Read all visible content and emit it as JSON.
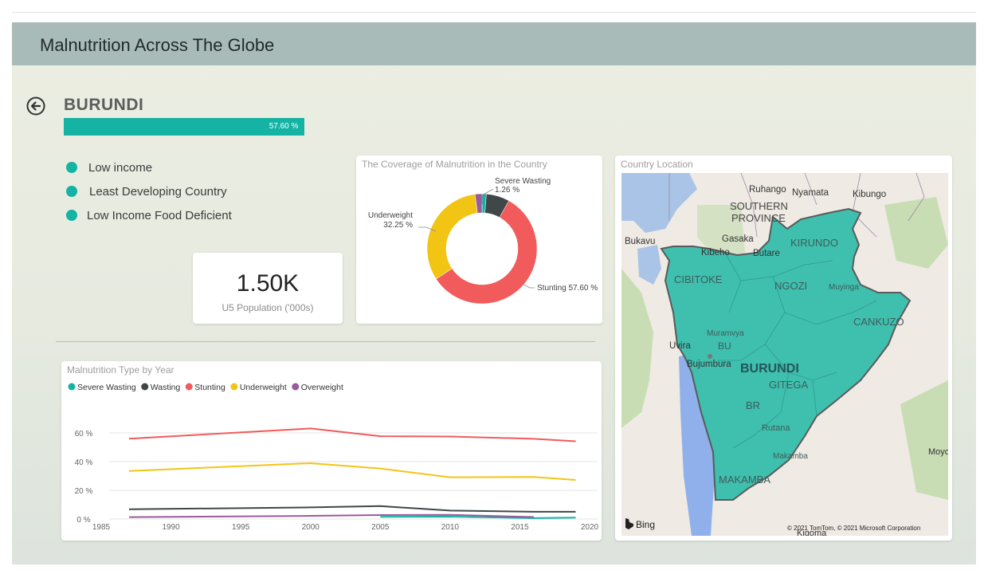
{
  "header": {
    "title": "Malnutrition Across The Globe"
  },
  "country": {
    "name": "BURUNDI",
    "stunting_progress": {
      "value": 57.6,
      "label": "57.60 %",
      "color": "#14b3a3"
    },
    "classifications": [
      "Low income",
      "Least Developing Country",
      "Low Income Food Deficient"
    ]
  },
  "kpi": {
    "value": "1.50K",
    "label": "U5 Population ('000s)"
  },
  "donut": {
    "title": "The Coverage of Malnutrition in the Country",
    "chart_data": {
      "type": "pie",
      "slices": [
        {
          "name": "Severe Wasting",
          "value": 1.26,
          "label": "1.26 %",
          "color": "#14b3a3"
        },
        {
          "name": "Wasting",
          "value": 6.86,
          "color": "#3f4749"
        },
        {
          "name": "Stunting",
          "value": 57.6,
          "label": "57.60 %",
          "color": "#f15b5b"
        },
        {
          "name": "Underweight",
          "value": 32.25,
          "label": "32.25 %",
          "color": "#f2c515"
        },
        {
          "name": "Overweight",
          "value": 2.03,
          "color": "#9b5a9c"
        }
      ],
      "labels": {
        "severe_name": "Severe Wasting",
        "severe_val": "1.26 %",
        "under_name": "Underweight",
        "under_val": "32.25 %",
        "stunt": "Stunting 57.60 %"
      }
    }
  },
  "line": {
    "title": "Malnutrition Type by Year",
    "chart_data": {
      "type": "line",
      "xlim": [
        1985,
        2020
      ],
      "ylim": [
        0,
        70
      ],
      "xticks": [
        1985,
        1990,
        1995,
        2000,
        2005,
        2010,
        2015,
        2020
      ],
      "yticks": [
        {
          "v": 0,
          "label": "0 %"
        },
        {
          "v": 20,
          "label": "20 %"
        },
        {
          "v": 40,
          "label": "40 %"
        },
        {
          "v": 60,
          "label": "60 %"
        }
      ],
      "series": [
        {
          "name": "Severe Wasting",
          "color": "#14b3a3",
          "points": [
            [
              2005,
              1.5
            ],
            [
              2010,
              1.7
            ],
            [
              2016,
              0.6
            ],
            [
              2019,
              1.0
            ]
          ]
        },
        {
          "name": "Wasting",
          "color": "#3f4749",
          "points": [
            [
              1987,
              6.8
            ],
            [
              2000,
              8.1
            ],
            [
              2005,
              9.0
            ],
            [
              2010,
              5.9
            ],
            [
              2016,
              5.1
            ],
            [
              2019,
              5.1
            ]
          ]
        },
        {
          "name": "Stunting",
          "color": "#f15b5b",
          "points": [
            [
              1987,
              56.0
            ],
            [
              2000,
              63.1
            ],
            [
              2005,
              57.7
            ],
            [
              2010,
              57.5
            ],
            [
              2016,
              55.9
            ],
            [
              2019,
              54.2
            ]
          ]
        },
        {
          "name": "Underweight",
          "color": "#f2c515",
          "points": [
            [
              1987,
              33.5
            ],
            [
              2000,
              38.9
            ],
            [
              2005,
              35.2
            ],
            [
              2010,
              29.1
            ],
            [
              2016,
              29.3
            ],
            [
              2019,
              27.2
            ]
          ]
        },
        {
          "name": "Overweight",
          "color": "#9b5a9c",
          "points": [
            [
              1987,
              1.3
            ],
            [
              2000,
              2.2
            ],
            [
              2005,
              2.8
            ],
            [
              2010,
              2.9
            ],
            [
              2016,
              1.4
            ]
          ]
        }
      ]
    }
  },
  "map": {
    "title": "Country Location",
    "region_color": "#3fbfae",
    "labels": {
      "ruhango": "Ruhango",
      "nyamata": "Nyamata",
      "kibungo": "Kibungo",
      "southern1": "SOUTHERN",
      "southern2": "PROVINCE",
      "bukavu": "Bukavu",
      "gasaka": "Gasaka",
      "kibeho": "Kibeho",
      "butare": "Butare",
      "kirundo": "KIRUNDO",
      "cibitoke": "CIBITOKE",
      "ngozi": "NGOZI",
      "muyinga": "Muyinga",
      "cankuzo": "CANKUZO",
      "muramvya": "Muramvya",
      "uvira": "Uvira",
      "bu": "BU",
      "bujumbura": "Bujumbura",
      "burundi": "BURUNDI",
      "gitega": "GITEGA",
      "br": "BR",
      "rutana": "Rutana",
      "makamba_town": "Makamba",
      "makamba": "MAKAMBA",
      "moyo": "Moyo",
      "kigoma": "Kigoma"
    },
    "attribution": "© 2021 TomTom, © 2021 Microsoft Corporation",
    "bing": "Bing"
  }
}
